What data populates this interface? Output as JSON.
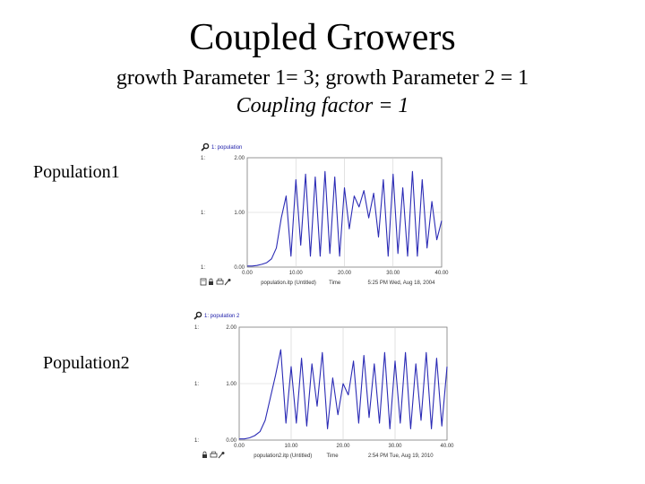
{
  "slide": {
    "title": "Coupled Growers",
    "subtitle": "growth Parameter 1= 3; growth Parameter 2 = 1",
    "coupling": "Coupling factor = 1",
    "label1": "Population1",
    "label2": "Population2"
  },
  "colors": {
    "series": "#2b2bb5",
    "grid": "#cfcfcf",
    "frame": "#7a7a7a"
  },
  "chart_data": [
    {
      "type": "line",
      "series_label": "1: population",
      "axis_marker": "1:",
      "ylim": [
        0,
        2
      ],
      "yticks": [
        "0.00",
        "1.00",
        "2.00"
      ],
      "xlim": [
        0,
        40
      ],
      "xticks": [
        "0.00",
        "10.00",
        "20.00",
        "30.00",
        "40.00"
      ],
      "grid": true,
      "footer": {
        "name": "population.itp (Untitled)",
        "axis": "Time",
        "time": "5:25 PM  Wed, Aug 18, 2004"
      },
      "series": [
        {
          "name": "1: population",
          "values": [
            0.02,
            0.02,
            0.03,
            0.05,
            0.08,
            0.15,
            0.35,
            0.9,
            1.3,
            0.2,
            1.6,
            0.4,
            1.7,
            0.2,
            1.65,
            0.2,
            1.75,
            0.25,
            1.65,
            0.2,
            1.45,
            0.7,
            1.3,
            1.1,
            1.4,
            0.9,
            1.35,
            0.55,
            1.6,
            0.2,
            1.7,
            0.25,
            1.45,
            0.2,
            1.75,
            0.2,
            1.6,
            0.35,
            1.2,
            0.5,
            0.85
          ]
        }
      ]
    },
    {
      "type": "line",
      "series_label": "1: population 2",
      "axis_marker": "1:",
      "ylim": [
        0,
        2
      ],
      "yticks": [
        "0.00",
        "1.00",
        "2.00"
      ],
      "xlim": [
        0,
        40
      ],
      "xticks": [
        "0.00",
        "10.00",
        "20.00",
        "30.00",
        "40.00"
      ],
      "grid": true,
      "footer": {
        "name": "population2.itp (Untitled)",
        "axis": "Time",
        "time": "2:54 PM  Tue, Aug 19, 2010"
      },
      "series": [
        {
          "name": "1: population 2",
          "values": [
            0.02,
            0.02,
            0.04,
            0.08,
            0.15,
            0.35,
            0.75,
            1.15,
            1.6,
            0.3,
            1.3,
            0.3,
            1.45,
            0.25,
            1.35,
            0.6,
            1.55,
            0.2,
            1.1,
            0.45,
            1.0,
            0.8,
            1.4,
            0.3,
            1.5,
            0.4,
            1.35,
            0.3,
            1.55,
            0.2,
            1.4,
            0.3,
            1.55,
            0.2,
            1.35,
            0.35,
            1.55,
            0.2,
            1.45,
            0.25,
            1.3
          ]
        }
      ]
    }
  ]
}
